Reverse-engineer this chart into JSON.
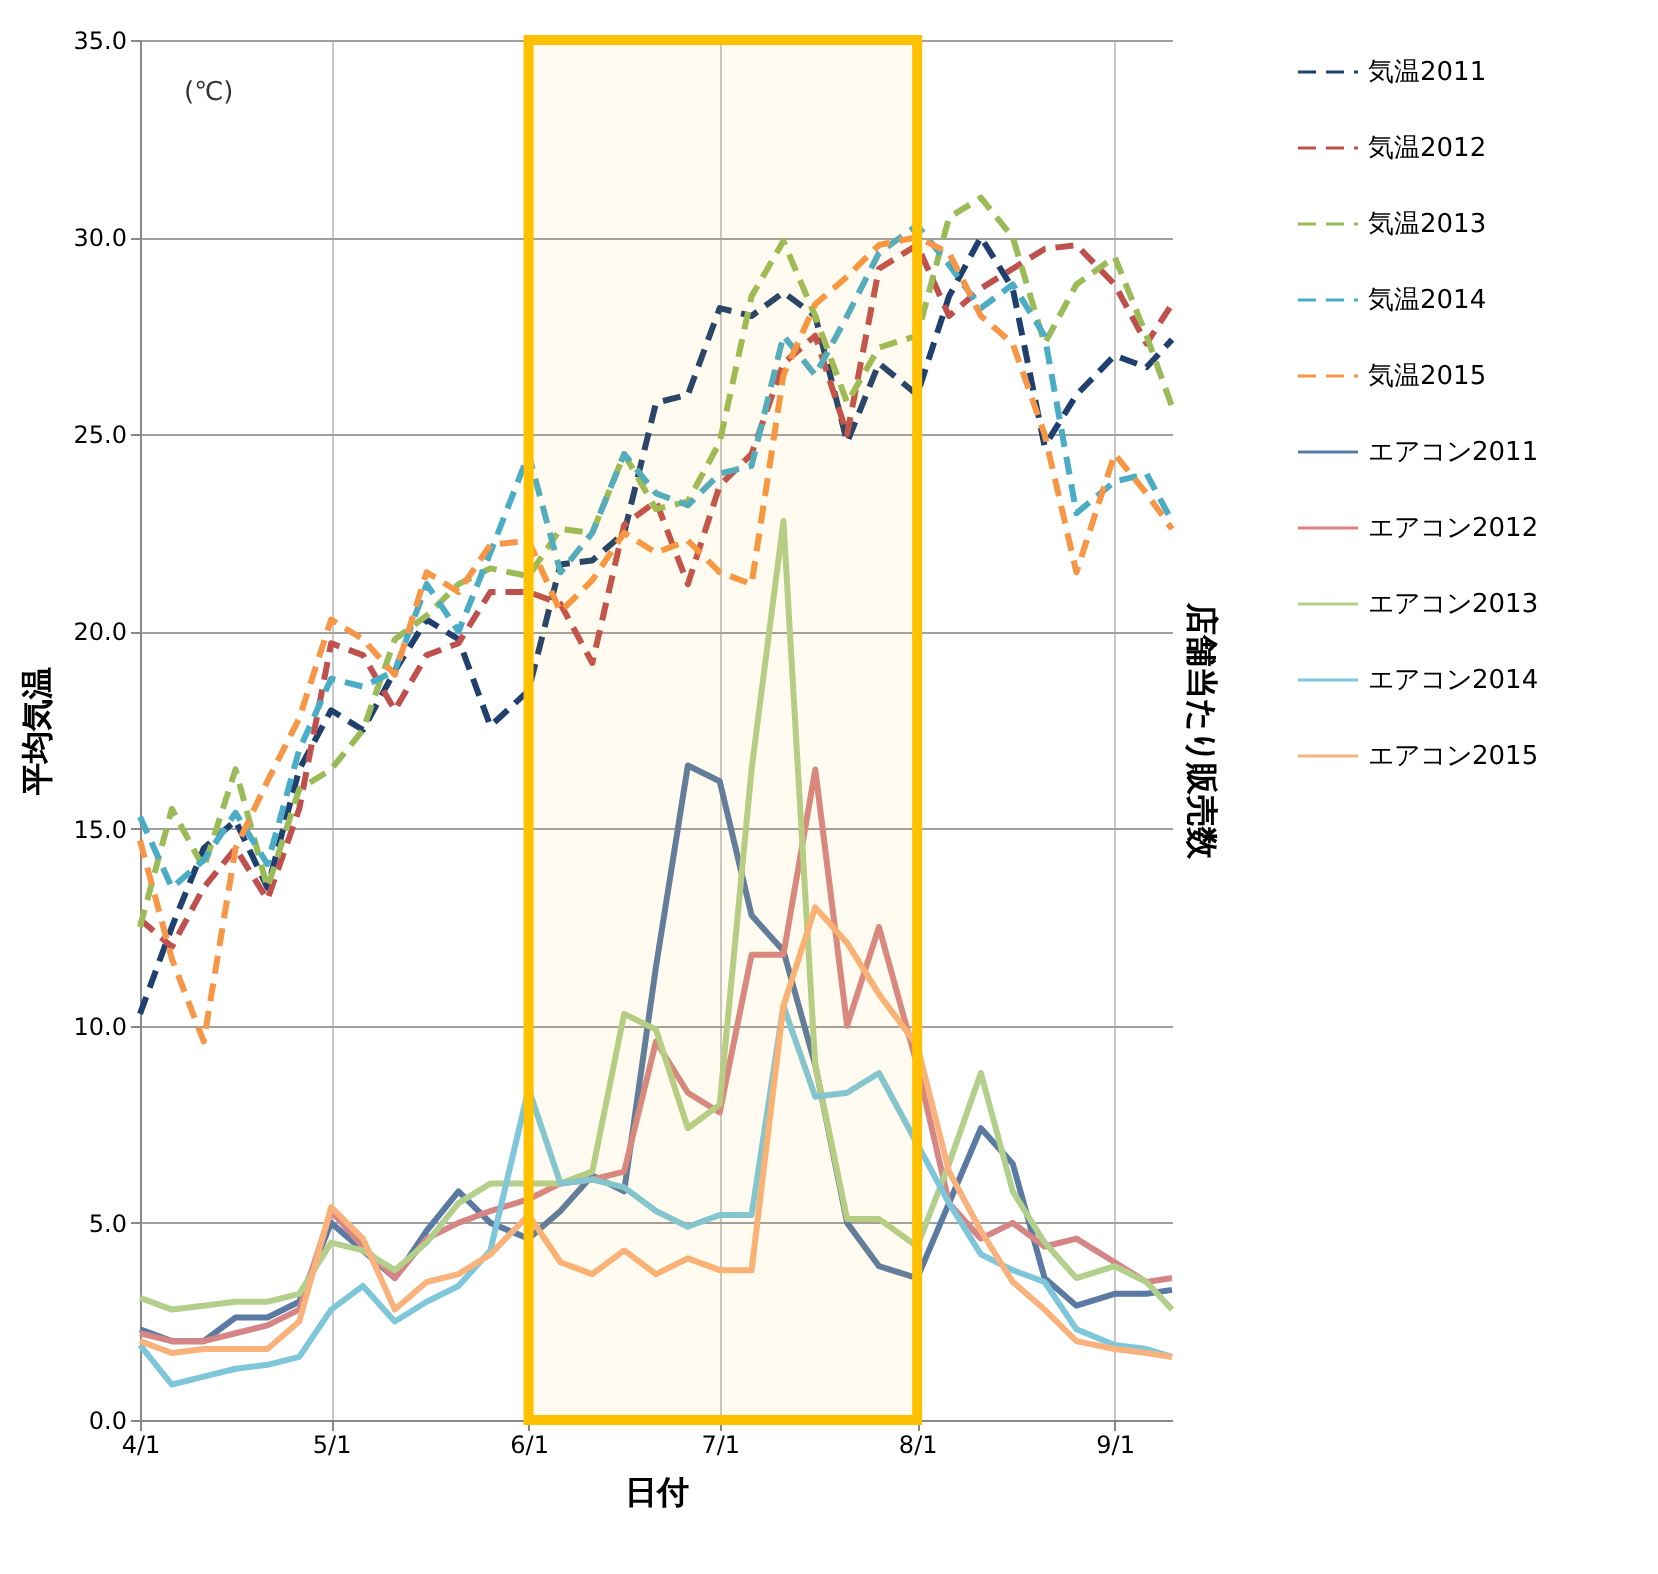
{
  "chart_data": {
    "type": "line",
    "xlabel": "日付",
    "ylabel": "平均気温",
    "y2label": "店舗当たり販売数",
    "annotations": [
      "(℃)"
    ],
    "x": [
      "--04-01",
      "--04-06",
      "--04-11",
      "--04-16",
      "--04-21",
      "--04-26",
      "--05-01",
      "--05-06",
      "--05-11",
      "--05-16",
      "--05-21",
      "--05-26",
      "--06-01",
      "--06-06",
      "--06-11",
      "--06-16",
      "--06-21",
      "--06-26",
      "--07-01",
      "--07-06",
      "--07-11",
      "--07-16",
      "--07-21",
      "--07-26",
      "--08-01",
      "--08-06",
      "--08-11",
      "--08-16",
      "--08-21",
      "--08-26",
      "--09-01",
      "--09-06",
      "--09-10"
    ],
    "series": [
      {
        "name": "気温2011",
        "color": "#1f3f6e",
        "line_style": "dashed",
        "values": [
          10.3,
          12.5,
          14.5,
          15.2,
          13.5,
          16.5,
          18.0,
          17.5,
          19.0,
          20.3,
          19.8,
          17.6,
          18.5,
          21.7,
          21.8,
          22.5,
          25.8,
          26.0,
          28.2,
          28.0,
          28.6,
          28.0,
          24.8,
          26.8,
          26.0,
          28.5,
          30.0,
          28.7,
          24.7,
          26.0,
          27.0,
          26.7,
          27.4
        ]
      },
      {
        "name": "気温2012",
        "color": "#c0504d",
        "line_style": "dashed",
        "values": [
          12.7,
          12.0,
          13.5,
          14.5,
          13.2,
          15.5,
          19.7,
          19.4,
          18.0,
          19.4,
          19.7,
          21.0,
          21.0,
          20.7,
          19.2,
          22.7,
          23.3,
          21.2,
          23.7,
          24.5,
          26.8,
          27.5,
          25.0,
          29.2,
          29.8,
          28.0,
          28.7,
          29.2,
          29.7,
          29.8,
          28.8,
          27.3,
          28.3
        ]
      },
      {
        "name": "気温2013",
        "color": "#9bbb59",
        "line_style": "dashed",
        "values": [
          12.5,
          15.5,
          14.0,
          16.5,
          13.5,
          16.0,
          16.5,
          17.5,
          19.8,
          20.4,
          21.2,
          21.6,
          21.4,
          22.6,
          22.5,
          24.5,
          23.1,
          23.3,
          24.8,
          28.5,
          29.9,
          28.0,
          25.8,
          27.2,
          27.5,
          30.5,
          31.0,
          30.0,
          27.3,
          28.8,
          29.5,
          27.5,
          25.7
        ]
      },
      {
        "name": "気温2014",
        "color": "#4bacc6",
        "line_style": "dashed",
        "values": [
          15.3,
          13.5,
          14.2,
          15.4,
          14.1,
          17.0,
          18.8,
          18.6,
          19.0,
          21.2,
          20.0,
          22.0,
          24.5,
          21.5,
          22.5,
          24.5,
          23.5,
          23.2,
          24.0,
          24.2,
          27.5,
          26.5,
          28.0,
          29.6,
          30.3,
          29.3,
          28.2,
          28.8,
          27.5,
          23.0,
          23.8,
          24.0,
          22.8
        ]
      },
      {
        "name": "気温2015",
        "color": "#f79646",
        "line_style": "dashed",
        "values": [
          14.7,
          11.7,
          9.6,
          14.5,
          16.2,
          17.8,
          20.3,
          19.8,
          18.9,
          21.5,
          21.0,
          22.2,
          22.3,
          20.5,
          21.3,
          22.5,
          22.0,
          22.3,
          21.5,
          21.2,
          26.5,
          28.3,
          29.0,
          29.8,
          30.0,
          29.6,
          28.0,
          27.3,
          25.0,
          21.5,
          24.5,
          23.5,
          22.6
        ]
      },
      {
        "name": "エアコン2011",
        "color": "#5b7aa3",
        "line_style": "solid",
        "values": [
          2.3,
          2.0,
          2.0,
          2.6,
          2.6,
          3.0,
          5.0,
          4.3,
          3.6,
          4.8,
          5.8,
          5.0,
          4.6,
          5.3,
          6.2,
          5.8,
          11.5,
          16.6,
          16.2,
          12.8,
          11.9,
          9.0,
          5.0,
          3.9,
          3.6,
          5.5,
          7.4,
          6.5,
          3.6,
          2.9,
          3.2,
          3.2,
          3.3
        ]
      },
      {
        "name": "エアコン2012",
        "color": "#d68585",
        "line_style": "solid",
        "values": [
          2.2,
          2.0,
          2.0,
          2.2,
          2.4,
          2.8,
          5.3,
          4.4,
          3.6,
          4.6,
          5.0,
          5.3,
          5.6,
          6.0,
          6.1,
          6.3,
          9.6,
          8.3,
          7.8,
          11.8,
          11.8,
          16.5,
          10.0,
          12.5,
          9.0,
          5.5,
          4.6,
          5.0,
          4.4,
          4.6,
          4.0,
          3.5,
          3.6
        ]
      },
      {
        "name": "エアコン2013",
        "color": "#b3cf8c",
        "line_style": "solid",
        "values": [
          3.1,
          2.8,
          2.9,
          3.0,
          3.0,
          3.2,
          4.5,
          4.3,
          3.8,
          4.5,
          5.5,
          6.0,
          6.0,
          6.0,
          6.3,
          10.3,
          9.9,
          7.4,
          8.0,
          16.5,
          22.8,
          9.0,
          5.1,
          5.1,
          4.4,
          6.5,
          8.8,
          5.8,
          4.5,
          3.6,
          3.9,
          3.5,
          2.8
        ]
      },
      {
        "name": "エアコン2014",
        "color": "#7ec6da",
        "line_style": "solid",
        "values": [
          1.9,
          0.9,
          1.1,
          1.3,
          1.4,
          1.6,
          2.8,
          3.4,
          2.5,
          3.0,
          3.4,
          4.3,
          8.4,
          6.0,
          6.1,
          5.9,
          5.3,
          4.9,
          5.2,
          5.2,
          10.5,
          8.2,
          8.3,
          8.8,
          7.0,
          5.5,
          4.2,
          3.8,
          3.5,
          2.3,
          1.9,
          1.8,
          1.6
        ]
      },
      {
        "name": "エアコン2015",
        "color": "#fab27c",
        "line_style": "solid",
        "values": [
          2.0,
          1.7,
          1.8,
          1.8,
          1.8,
          2.5,
          5.4,
          4.6,
          2.8,
          3.5,
          3.7,
          4.2,
          5.2,
          4.0,
          3.7,
          4.3,
          3.7,
          4.1,
          3.8,
          3.8,
          10.5,
          13.0,
          12.1,
          10.8,
          9.5,
          6.3,
          4.8,
          3.5,
          2.8,
          2.0,
          1.8,
          1.7,
          1.6
        ]
      }
    ],
    "xlim": [
      "--04-01",
      "--09-10"
    ],
    "xticks": [
      {
        "value": "--04-01",
        "label": "4/1"
      },
      {
        "value": "--05-01",
        "label": "5/1"
      },
      {
        "value": "--06-01",
        "label": "6/1"
      },
      {
        "value": "--07-01",
        "label": "7/1"
      },
      {
        "value": "--08-01",
        "label": "8/1"
      },
      {
        "value": "--09-01",
        "label": "9/1"
      }
    ],
    "ylim": [
      0,
      35
    ],
    "yticks": [
      {
        "value": 0,
        "label": "0.0"
      },
      {
        "value": 5,
        "label": "5.0"
      },
      {
        "value": 10,
        "label": "10.0"
      },
      {
        "value": 15,
        "label": "15.0"
      },
      {
        "value": 20,
        "label": "20.0"
      },
      {
        "value": 25,
        "label": "25.0"
      },
      {
        "value": 30,
        "label": "30.0"
      },
      {
        "value": 35,
        "label": "35.0"
      }
    ],
    "bands": [
      {
        "axis": "x",
        "from": "--06-01",
        "to": "--08-01",
        "color": "#ffc000"
      }
    ],
    "grid": true,
    "legend": "right",
    "marker": "none"
  }
}
